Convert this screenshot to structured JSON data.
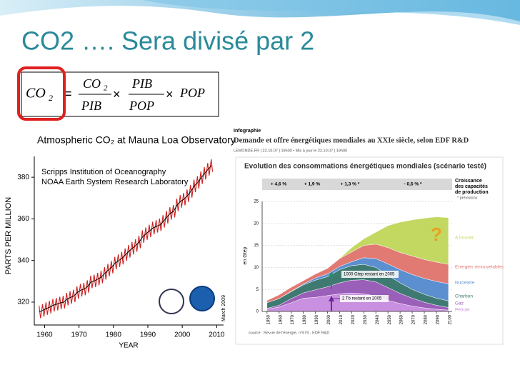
{
  "title": "CO2 …. Sera divisé par 2",
  "formula": {
    "lhs": "CO",
    "lhs_sub": "2",
    "equals": "=",
    "f1_num": "CO",
    "f1_num_sub": "2",
    "f1_den": "PIB",
    "times": "×",
    "f2_num": "PIB",
    "f2_den": "POP",
    "last": "POP"
  },
  "chart_data": [
    {
      "type": "line",
      "title": "Atmospheric CO₂ at Mauna Loa Observatory",
      "annotations": [
        "Scripps Institution of Oceanography",
        "NOAA Earth System Research Laboratory",
        "March 2009"
      ],
      "xlabel": "YEAR",
      "ylabel": "PARTS PER MILLION",
      "xlim": [
        1957,
        2012
      ],
      "xticks": [
        1960,
        1970,
        1980,
        1990,
        2000,
        2010
      ],
      "ylim": [
        309,
        390
      ],
      "yticks": [
        320,
        340,
        360,
        380
      ],
      "series": [
        {
          "color": "#cc1f1f",
          "x": [
            1958.4,
            1958.8,
            1959.4,
            1959.8,
            1960.4,
            1960.8,
            1961.4,
            1961.8,
            1962.4,
            1962.8,
            1963.4,
            1963.8,
            1964.4,
            1964.8,
            1965.4,
            1965.8,
            1966.4,
            1966.8,
            1967.4,
            1967.8,
            1968.4,
            1968.8,
            1969.4,
            1969.8,
            1970.4,
            1970.8,
            1971.4,
            1971.8,
            1972.4,
            1972.8,
            1973.4,
            1973.8,
            1974.4,
            1974.8,
            1975.4,
            1975.8,
            1976.4,
            1976.8,
            1977.4,
            1977.8,
            1978.4,
            1978.8,
            1979.4,
            1979.8,
            1980.4,
            1980.8,
            1981.4,
            1981.8,
            1982.4,
            1982.8,
            1983.4,
            1983.8,
            1984.4,
            1984.8,
            1985.4,
            1985.8,
            1986.4,
            1986.8,
            1987.4,
            1987.8,
            1988.4,
            1988.8,
            1989.4,
            1989.8,
            1990.4,
            1990.8,
            1991.4,
            1991.8,
            1992.4,
            1992.8,
            1993.4,
            1993.8,
            1994.4,
            1994.8,
            1995.4,
            1995.8,
            1996.4,
            1996.8,
            1997.4,
            1997.8,
            1998.4,
            1998.8,
            1999.4,
            1999.8,
            2000.4,
            2000.8,
            2001.4,
            2001.8,
            2002.4,
            2002.8,
            2003.4,
            2003.8,
            2004.4,
            2004.8,
            2005.4,
            2005.8,
            2006.4,
            2006.8,
            2007.4,
            2007.8,
            2008.4,
            2008.8
          ],
          "values": [
            318.3,
            312.3,
            319.0,
            313.0,
            319.9,
            313.9,
            320.6,
            314.6,
            321.5,
            315.5,
            322.0,
            316.0,
            322.6,
            316.6,
            323.0,
            317.0,
            324.4,
            318.4,
            325.2,
            319.2,
            326.0,
            320.0,
            327.6,
            321.6,
            328.7,
            322.7,
            329.3,
            323.3,
            330.5,
            324.5,
            332.7,
            326.7,
            333.2,
            327.2,
            334.1,
            328.1,
            335.1,
            329.1,
            336.8,
            330.8,
            338.4,
            332.4,
            339.8,
            333.8,
            341.7,
            335.7,
            342.9,
            336.9,
            344.1,
            338.1,
            345.8,
            339.8,
            347.4,
            341.4,
            348.9,
            342.9,
            350.2,
            344.2,
            351.9,
            345.9,
            354.5,
            348.5,
            355.9,
            349.9,
            357.2,
            351.2,
            358.6,
            352.6,
            359.4,
            353.4,
            360.1,
            354.1,
            361.8,
            355.8,
            363.8,
            357.8,
            365.6,
            359.6,
            366.7,
            360.7,
            369.7,
            363.7,
            371.4,
            365.4,
            372.5,
            366.5,
            374.1,
            368.1,
            376.2,
            370.2,
            378.8,
            372.8,
            380.5,
            374.5,
            382.8,
            376.8,
            384.9,
            378.9,
            386.8,
            380.8,
            388.6,
            382.6
          ]
        },
        {
          "color": "#000000",
          "x": [
            1958.5,
            1959.5,
            1960.5,
            1961.5,
            1962.5,
            1963.5,
            1964.5,
            1965.5,
            1966.5,
            1967.5,
            1968.5,
            1969.5,
            1970.5,
            1971.5,
            1972.5,
            1973.5,
            1974.5,
            1975.5,
            1976.5,
            1977.5,
            1978.5,
            1979.5,
            1980.5,
            1981.5,
            1982.5,
            1983.5,
            1984.5,
            1985.5,
            1986.5,
            1987.5,
            1988.5,
            1989.5,
            1990.5,
            1991.5,
            1992.5,
            1993.5,
            1994.5,
            1995.5,
            1996.5,
            1997.5,
            1998.5,
            1999.5,
            2000.5,
            2001.5,
            2002.5,
            2003.5,
            2004.5,
            2005.5,
            2006.5,
            2007.5,
            2008.5
          ],
          "values": [
            315.3,
            316.0,
            316.9,
            317.6,
            318.5,
            319.0,
            319.6,
            320.0,
            321.4,
            322.2,
            323.0,
            324.6,
            325.7,
            326.3,
            327.5,
            329.7,
            330.2,
            331.1,
            332.1,
            333.8,
            335.4,
            336.8,
            338.7,
            339.9,
            341.1,
            342.8,
            344.4,
            345.9,
            347.2,
            348.9,
            351.5,
            352.9,
            354.2,
            355.6,
            356.4,
            357.1,
            358.8,
            360.8,
            362.6,
            363.7,
            366.7,
            368.4,
            369.5,
            371.1,
            373.2,
            375.8,
            377.5,
            379.8,
            381.9,
            383.8,
            385.6
          ]
        }
      ]
    },
    {
      "type": "area",
      "title": "Demande et offre énergétiques mondiales au XXIe siècle, selon EDF R&D",
      "kicker": "Infographie",
      "byline": "LEMONDE.FR | 22.10.07 | 19h00 • Mis à jour le 22.10.07 | 19h00",
      "subtitle": "Evolution des consommations énergétiques mondiales (scénario testé)",
      "growth_rates": [
        "+ 4,6 %",
        "+ 1,9 %",
        "+ 1,3 % *",
        "- 0,5 % *"
      ],
      "legend_title": [
        "Croissance",
        "des capacités",
        "de production"
      ],
      "footnote": "* prévisions",
      "annotations": [
        "?",
        "1000 Gtep restant en 2005",
        "2 Tb restant en 2005"
      ],
      "ylabel": "en Gtep",
      "source": "source : Revue de l'énergie, n°579 - EDF R&D",
      "grid": true,
      "x": [
        1950,
        1960,
        1970,
        1980,
        1990,
        2000,
        2010,
        2020,
        2030,
        2040,
        2050,
        2060,
        2070,
        2080,
        2090,
        2100
      ],
      "xlim": [
        1946,
        2103
      ],
      "xticks": [
        1950,
        1960,
        1970,
        1980,
        1990,
        2000,
        2010,
        2020,
        2030,
        2040,
        2050,
        2060,
        2070,
        2080,
        2090,
        2100
      ],
      "ylim": [
        0,
        25
      ],
      "yticks": [
        0,
        5,
        10,
        15,
        20,
        25
      ],
      "series": [
        {
          "name": "Pétrole",
          "color": "#c98fe0",
          "values": [
            0.5,
            1,
            2,
            3,
            3.2,
            3.6,
            4,
            4.2,
            4,
            3.5,
            2.5,
            1.8,
            1.2,
            0.8,
            0.5,
            0.3
          ]
        },
        {
          "name": "Gaz",
          "color": "#9a5fb8",
          "values": [
            0.2,
            0.4,
            0.9,
            1.2,
            1.7,
            2,
            2.5,
            2.9,
            3.2,
            3.2,
            2.9,
            2.3,
            1.8,
            1.3,
            0.9,
            0.6
          ]
        },
        {
          "name": "Charbon",
          "color": "#3f7a72",
          "values": [
            1.3,
            1.5,
            1.6,
            1.8,
            2.2,
            2.3,
            3,
            3.3,
            3.5,
            3.3,
            2.8,
            2.4,
            2,
            1.8,
            1.6,
            1.5
          ]
        },
        {
          "name": "Nucléaire",
          "color": "#5b8fd0",
          "values": [
            0,
            0,
            0.1,
            0.2,
            0.5,
            0.6,
            0.7,
            0.9,
            1.5,
            2,
            2.6,
            3,
            3.4,
            3.6,
            3.8,
            3.9
          ]
        },
        {
          "name": "Energies renouvelables",
          "color": "#e07a72",
          "values": [
            0.5,
            0.9,
            0.9,
            0.8,
            0.9,
            1.3,
            1.8,
            2.2,
            2.8,
            3.3,
            3.7,
            3.9,
            4.2,
            4.3,
            4.4,
            4.4
          ]
        },
        {
          "name": "A trouver",
          "color": "#c2d861",
          "values": [
            0,
            0,
            0,
            0,
            0,
            0,
            0,
            1,
            1.5,
            2.7,
            5,
            6.9,
            8.2,
            9.4,
            10.3,
            10.6
          ]
        }
      ]
    }
  ]
}
